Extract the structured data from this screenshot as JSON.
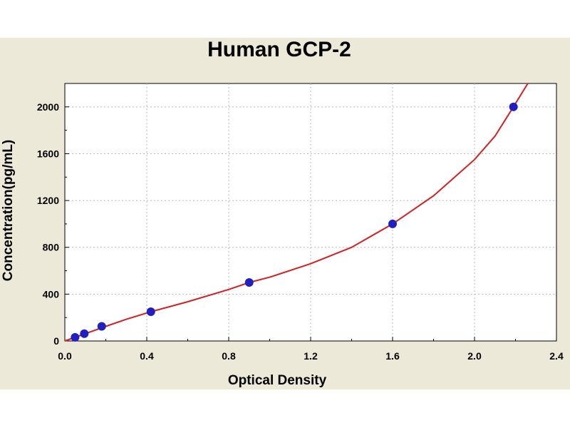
{
  "chart_data": {
    "type": "scatter",
    "title": "Human GCP-2",
    "xlabel": "Optical Density",
    "ylabel": "Concentration(pg/mL)",
    "xlim": [
      0,
      2.4
    ],
    "ylim": [
      0,
      2200
    ],
    "xticks": [
      "0.0",
      "0.4",
      "0.8",
      "1.2",
      "1.6",
      "2.0",
      "2.4"
    ],
    "yticks": [
      "0",
      "400",
      "800",
      "1200",
      "1600",
      "2000"
    ],
    "grid": true,
    "series": [
      {
        "points": [
          {
            "x": 0.05,
            "y": 31.2
          },
          {
            "x": 0.095,
            "y": 62.5
          },
          {
            "x": 0.18,
            "y": 125
          },
          {
            "x": 0.42,
            "y": 250
          },
          {
            "x": 0.9,
            "y": 500
          },
          {
            "x": 1.6,
            "y": 1000
          },
          {
            "x": 2.19,
            "y": 2000
          }
        ],
        "point_color": "#2020c0",
        "fit_curve": [
          {
            "x": 0.0,
            "y": 0
          },
          {
            "x": 0.1,
            "y": 62
          },
          {
            "x": 0.2,
            "y": 125
          },
          {
            "x": 0.3,
            "y": 185
          },
          {
            "x": 0.42,
            "y": 250
          },
          {
            "x": 0.6,
            "y": 335
          },
          {
            "x": 0.8,
            "y": 440
          },
          {
            "x": 0.9,
            "y": 500
          },
          {
            "x": 1.0,
            "y": 545
          },
          {
            "x": 1.2,
            "y": 660
          },
          {
            "x": 1.4,
            "y": 800
          },
          {
            "x": 1.6,
            "y": 1000
          },
          {
            "x": 1.8,
            "y": 1240
          },
          {
            "x": 2.0,
            "y": 1550
          },
          {
            "x": 2.1,
            "y": 1750
          },
          {
            "x": 2.19,
            "y": 2000
          },
          {
            "x": 2.26,
            "y": 2200
          }
        ],
        "curve_color": "#d42020"
      }
    ]
  }
}
